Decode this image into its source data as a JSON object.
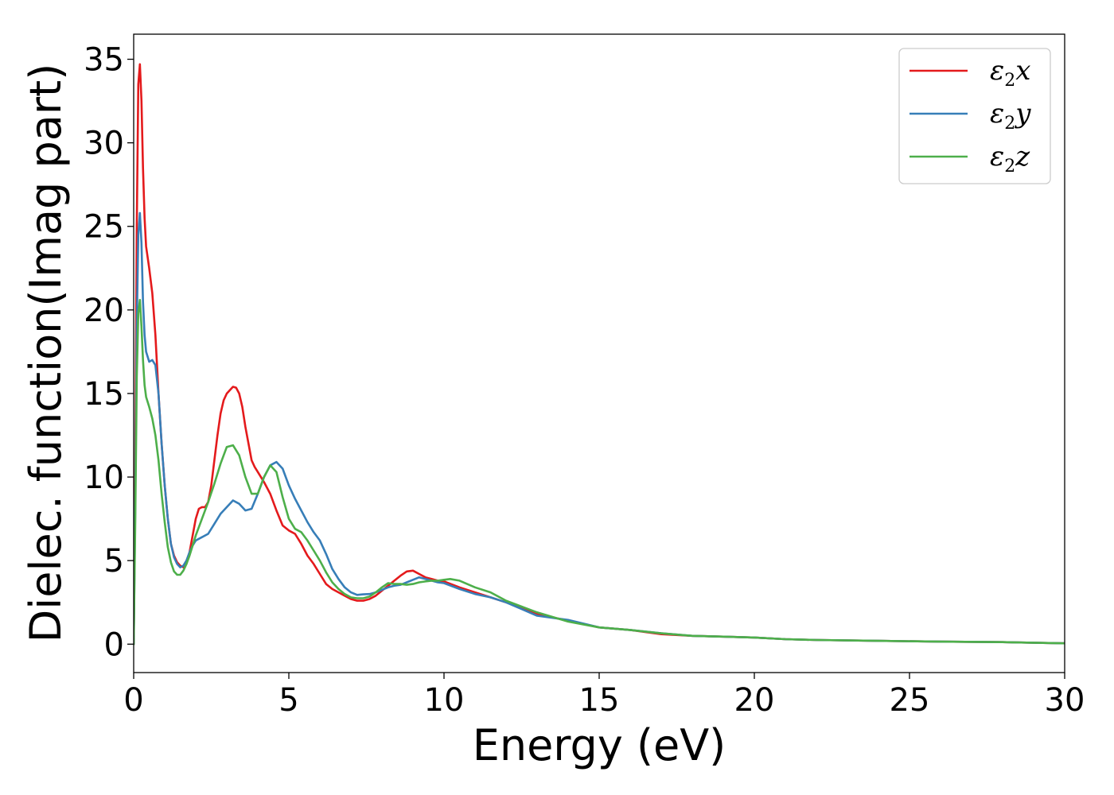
{
  "chart_data": {
    "type": "line",
    "xlabel": "Energy (eV)",
    "ylabel": "Dielec. function(Imag part)",
    "xlim": [
      0,
      30
    ],
    "ylim": [
      -1.7,
      36.5
    ],
    "xticks": [
      0,
      5,
      10,
      15,
      20,
      25,
      30
    ],
    "yticks": [
      0,
      5,
      10,
      15,
      20,
      25,
      30,
      35
    ],
    "grid": false,
    "legend_position": "top-right",
    "series": [
      {
        "name": "ε₂x",
        "legend_main": "ε",
        "legend_sub": "2",
        "legend_axis": "x",
        "color": "#e41a1c",
        "x": [
          0,
          0.05,
          0.1,
          0.15,
          0.2,
          0.25,
          0.3,
          0.35,
          0.4,
          0.5,
          0.6,
          0.7,
          0.8,
          0.9,
          1.0,
          1.1,
          1.2,
          1.3,
          1.4,
          1.5,
          1.6,
          1.7,
          1.8,
          1.9,
          2.0,
          2.1,
          2.2,
          2.3,
          2.4,
          2.5,
          2.6,
          2.7,
          2.8,
          2.9,
          3.0,
          3.1,
          3.2,
          3.3,
          3.4,
          3.5,
          3.6,
          3.7,
          3.8,
          3.9,
          4.0,
          4.2,
          4.4,
          4.6,
          4.8,
          5.0,
          5.2,
          5.4,
          5.6,
          5.8,
          6.0,
          6.2,
          6.4,
          6.6,
          6.8,
          7.0,
          7.2,
          7.4,
          7.6,
          7.8,
          8.0,
          8.2,
          8.4,
          8.6,
          8.8,
          9.0,
          9.2,
          9.4,
          9.6,
          9.8,
          10.0,
          10.5,
          11.0,
          11.5,
          12.0,
          12.5,
          13.0,
          14.0,
          15.0,
          16.0,
          17.0,
          18.0,
          19.0,
          20.0,
          21.0,
          22.0,
          24.0,
          26.0,
          28.0,
          30.0
        ],
        "values": [
          0,
          10,
          25,
          33.5,
          34.7,
          32.5,
          28.5,
          25.5,
          23.8,
          22.5,
          21.0,
          18.5,
          15.0,
          12.0,
          9.5,
          7.5,
          6.0,
          5.3,
          4.9,
          4.7,
          4.6,
          4.8,
          5.5,
          6.5,
          7.5,
          8.1,
          8.2,
          8.2,
          8.5,
          9.5,
          11.0,
          12.5,
          13.8,
          14.6,
          15.0,
          15.2,
          15.4,
          15.35,
          15.0,
          14.2,
          13.0,
          12.0,
          11.0,
          10.6,
          10.3,
          9.7,
          9.0,
          8.0,
          7.1,
          6.8,
          6.6,
          6.0,
          5.3,
          4.8,
          4.2,
          3.6,
          3.3,
          3.1,
          2.9,
          2.7,
          2.6,
          2.6,
          2.7,
          2.9,
          3.2,
          3.5,
          3.8,
          4.1,
          4.35,
          4.4,
          4.2,
          4.0,
          3.9,
          3.8,
          3.75,
          3.4,
          3.1,
          2.8,
          2.5,
          2.2,
          1.8,
          1.4,
          1.0,
          0.85,
          0.6,
          0.5,
          0.45,
          0.4,
          0.3,
          0.25,
          0.2,
          0.15,
          0.12,
          0.05
        ]
      },
      {
        "name": "ε₂y",
        "legend_main": "ε",
        "legend_sub": "2",
        "legend_axis": "y",
        "color": "#377eb8",
        "x": [
          0,
          0.05,
          0.1,
          0.15,
          0.2,
          0.25,
          0.3,
          0.35,
          0.4,
          0.5,
          0.6,
          0.7,
          0.8,
          0.9,
          1.0,
          1.1,
          1.2,
          1.3,
          1.4,
          1.5,
          1.6,
          1.7,
          1.8,
          1.9,
          2.0,
          2.2,
          2.4,
          2.6,
          2.8,
          3.0,
          3.2,
          3.4,
          3.6,
          3.8,
          4.0,
          4.2,
          4.4,
          4.6,
          4.8,
          5.0,
          5.2,
          5.4,
          5.6,
          5.8,
          6.0,
          6.2,
          6.4,
          6.6,
          6.8,
          7.0,
          7.2,
          7.4,
          7.6,
          7.8,
          8.0,
          8.2,
          8.4,
          8.6,
          8.8,
          9.0,
          9.2,
          9.4,
          9.6,
          9.8,
          10.0,
          10.5,
          11.0,
          11.5,
          12.0,
          12.5,
          13.0,
          14.0,
          15.0,
          16.0,
          17.0,
          18.0,
          19.0,
          20.0,
          21.0,
          22.0,
          24.0,
          26.0,
          28.0,
          30.0
        ],
        "values": [
          0,
          8,
          19,
          24.5,
          25.8,
          24.0,
          20.5,
          18.5,
          17.5,
          16.9,
          17.0,
          16.7,
          15.0,
          12.0,
          9.5,
          7.5,
          6.0,
          5.2,
          4.8,
          4.6,
          4.7,
          5.0,
          5.5,
          5.9,
          6.2,
          6.4,
          6.6,
          7.2,
          7.8,
          8.2,
          8.6,
          8.4,
          8.0,
          8.1,
          9.0,
          10.0,
          10.7,
          10.9,
          10.5,
          9.5,
          8.7,
          8.0,
          7.3,
          6.7,
          6.2,
          5.4,
          4.5,
          3.9,
          3.4,
          3.1,
          2.95,
          2.98,
          3.0,
          3.1,
          3.25,
          3.4,
          3.5,
          3.55,
          3.7,
          3.85,
          4.0,
          3.9,
          3.8,
          3.7,
          3.65,
          3.3,
          3.0,
          2.8,
          2.5,
          2.1,
          1.7,
          1.45,
          1.0,
          0.85,
          0.65,
          0.5,
          0.45,
          0.4,
          0.3,
          0.25,
          0.2,
          0.15,
          0.12,
          0.05
        ]
      },
      {
        "name": "ε₂z",
        "legend_main": "ε",
        "legend_sub": "2",
        "legend_axis": "z",
        "color": "#4daf4a",
        "x": [
          0,
          0.05,
          0.1,
          0.15,
          0.2,
          0.25,
          0.3,
          0.35,
          0.4,
          0.5,
          0.6,
          0.7,
          0.8,
          0.9,
          1.0,
          1.1,
          1.2,
          1.3,
          1.4,
          1.5,
          1.6,
          1.7,
          1.8,
          1.9,
          2.0,
          2.2,
          2.4,
          2.6,
          2.8,
          3.0,
          3.2,
          3.4,
          3.6,
          3.8,
          4.0,
          4.2,
          4.4,
          4.6,
          4.8,
          5.0,
          5.2,
          5.4,
          5.6,
          5.8,
          6.0,
          6.2,
          6.4,
          6.6,
          6.8,
          7.0,
          7.2,
          7.4,
          7.6,
          7.8,
          8.0,
          8.2,
          8.4,
          8.6,
          8.8,
          9.0,
          9.2,
          9.4,
          9.6,
          9.8,
          10.0,
          10.2,
          10.5,
          11.0,
          11.5,
          12.0,
          12.5,
          13.0,
          14.0,
          15.0,
          16.0,
          17.0,
          18.0,
          19.0,
          20.0,
          21.0,
          22.0,
          24.0,
          26.0,
          28.0,
          30.0
        ],
        "values": [
          0,
          7,
          16,
          19.8,
          20.6,
          19.0,
          17.0,
          15.5,
          14.8,
          14.2,
          13.5,
          12.5,
          11.0,
          9.0,
          7.3,
          5.8,
          4.9,
          4.35,
          4.15,
          4.15,
          4.4,
          4.8,
          5.3,
          5.9,
          6.5,
          7.5,
          8.5,
          9.6,
          10.8,
          11.8,
          11.9,
          11.3,
          10.0,
          9.0,
          9.0,
          10.0,
          10.7,
          10.3,
          8.8,
          7.5,
          6.9,
          6.7,
          6.2,
          5.6,
          5.0,
          4.3,
          3.7,
          3.3,
          3.0,
          2.8,
          2.75,
          2.75,
          2.85,
          3.1,
          3.4,
          3.65,
          3.6,
          3.6,
          3.55,
          3.6,
          3.7,
          3.75,
          3.8,
          3.8,
          3.85,
          3.9,
          3.8,
          3.4,
          3.1,
          2.6,
          2.25,
          1.9,
          1.35,
          1.0,
          0.85,
          0.65,
          0.5,
          0.45,
          0.4,
          0.3,
          0.25,
          0.2,
          0.15,
          0.12,
          0.05
        ]
      }
    ]
  }
}
